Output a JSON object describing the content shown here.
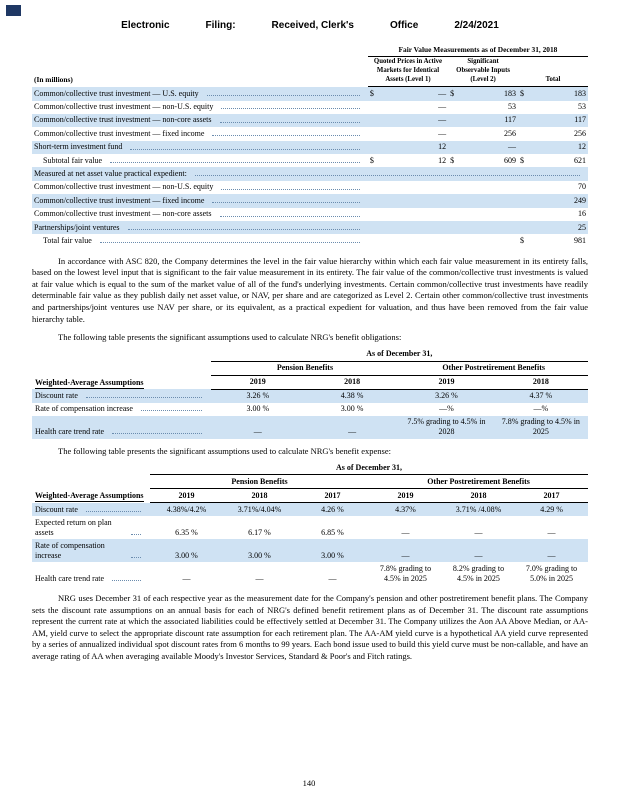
{
  "colors": {
    "row_shade": "#cfe2f3",
    "stamp_color": "#1f3864"
  },
  "header": {
    "parts": [
      "Electronic",
      "Filing:",
      "Received, Clerk's",
      "Office",
      "2/24/2021"
    ]
  },
  "fv": {
    "caption": "Fair Value Measurements as of December 31, 2018",
    "in_millions": "(In millions)",
    "columns": [
      "Quoted Prices in Active Markets for Identical Assets (Level 1)",
      "Significant Observable Inputs (Level 2)",
      "Total"
    ],
    "rows": [
      {
        "label": "Common/collective trust investment — U.S. equity",
        "d1": "$",
        "v1": "—",
        "d2": "$",
        "v2": "183",
        "d3": "$",
        "v3": "183"
      },
      {
        "label": "Common/collective trust investment — non-U.S. equity",
        "v1": "—",
        "v2": "53",
        "v3": "53"
      },
      {
        "label": "Common/collective trust investment — non-core assets",
        "v1": "—",
        "v2": "117",
        "v3": "117"
      },
      {
        "label": "Common/collective trust investment — fixed income",
        "v1": "—",
        "v2": "256",
        "v3": "256"
      },
      {
        "label": "Short-term investment fund",
        "v1": "12",
        "v2": "—",
        "v3": "12"
      },
      {
        "label": "Subtotal fair value",
        "d1": "$",
        "v1": "12",
        "d2": "$",
        "v2": "609",
        "d3": "$",
        "v3": "621"
      },
      {
        "label": "Measured at net asset value practical expedient:"
      },
      {
        "label": "Common/collective trust investment — non-U.S. equity",
        "v3": "70"
      },
      {
        "label": "Common/collective trust investment — fixed income",
        "v3": "249"
      },
      {
        "label": "Common/collective trust investment — non-core assets",
        "v3": "16"
      },
      {
        "label": "Partnerships/joint ventures",
        "v3": "25"
      },
      {
        "label": "Total fair value",
        "d3": "$",
        "v3": "981"
      }
    ]
  },
  "para1": "In accordance with ASC 820, the Company determines the level in the fair value hierarchy within which each fair value measurement in its entirety falls, based on the lowest level input that is significant to the fair value measurement in its entirety. The fair value of the common/collective trust investments is valued at fair value which is equal to the sum of the market value of all of the fund's underlying investments. Certain common/collective trust investments have readily determinable fair value as they publish daily net asset value, or NAV, per share and are categorized as Level 2. Certain other common/collective trust investments and partnerships/joint ventures use NAV per share, or its equivalent, as a practical expedient for valuation, and thus have been removed from the fair value hierarchy table.",
  "obl": {
    "intro": "The following table presents the significant assumptions used to calculate NRG's benefit obligations:",
    "as_of": "As of December 31,",
    "group1": "Pension Benefits",
    "group2": "Other Postretirement Benefits",
    "left_header": "Weighted-Average Assumptions",
    "years": [
      "2019",
      "2018",
      "2019",
      "2018"
    ],
    "rows": [
      {
        "label": "Discount rate",
        "v": [
          "3.26 %",
          "4.38 %",
          "3.26 %",
          "4.37 %"
        ]
      },
      {
        "label": "Rate of compensation increase",
        "v": [
          "3.00 %",
          "3.00 %",
          "—%",
          "—%"
        ]
      },
      {
        "label": "Health care trend rate",
        "v": [
          "—",
          "—",
          "7.5% grading to 4.5% in 2028",
          "7.8% grading to 4.5% in 2025"
        ]
      }
    ]
  },
  "exp": {
    "intro": "The following table presents the significant assumptions used to calculate NRG's benefit expense:",
    "as_of": "As of December 31,",
    "group1": "Pension Benefits",
    "group2": "Other Postretirement Benefits",
    "left_header": "Weighted-Average Assumptions",
    "years": [
      "2019",
      "2018",
      "2017",
      "2019",
      "2018",
      "2017"
    ],
    "rows": [
      {
        "label": "Discount rate",
        "v": [
          "4.38%/4.2%",
          "3.71%/4.04%",
          "4.26 %",
          "4.37%",
          "3.71% /4.08%",
          "4.29 %"
        ]
      },
      {
        "label": "Expected return on plan assets",
        "v": [
          "6.35 %",
          "6.17 %",
          "6.85 %",
          "—",
          "—",
          "—"
        ]
      },
      {
        "label": "Rate of compensation increase",
        "v": [
          "3.00 %",
          "3.00 %",
          "3.00 %",
          "—",
          "—",
          "—"
        ]
      },
      {
        "label": "Health care trend rate",
        "v": [
          "—",
          "—",
          "—",
          "7.8% grading to 4.5% in 2025",
          "8.2% grading to 4.5% in 2025",
          "7.0% grading to 5.0% in 2025"
        ]
      }
    ]
  },
  "para2": "NRG uses December 31 of each respective year as the measurement date for the Company's pension and other postretirement benefit plans. The Company sets the discount rate assumptions on an annual basis for each of NRG's defined benefit retirement plans as of December 31. The discount rate assumptions represent the current rate at which the associated liabilities could be effectively settled at December 31. The Company utilizes the Aon AA Above Median, or AA-AM, yield curve to select the appropriate discount rate assumption for each retirement plan. The AA-AM yield curve is a hypothetical AA yield curve represented by a series of annualized individual spot discount rates from 6 months to 99 years. Each bond issue used to build this yield curve must be non-callable, and have an average rating of AA when averaging available Moody's Investor Services, Standard & Poor's and Fitch ratings.",
  "footer": {
    "page_number": "140"
  }
}
